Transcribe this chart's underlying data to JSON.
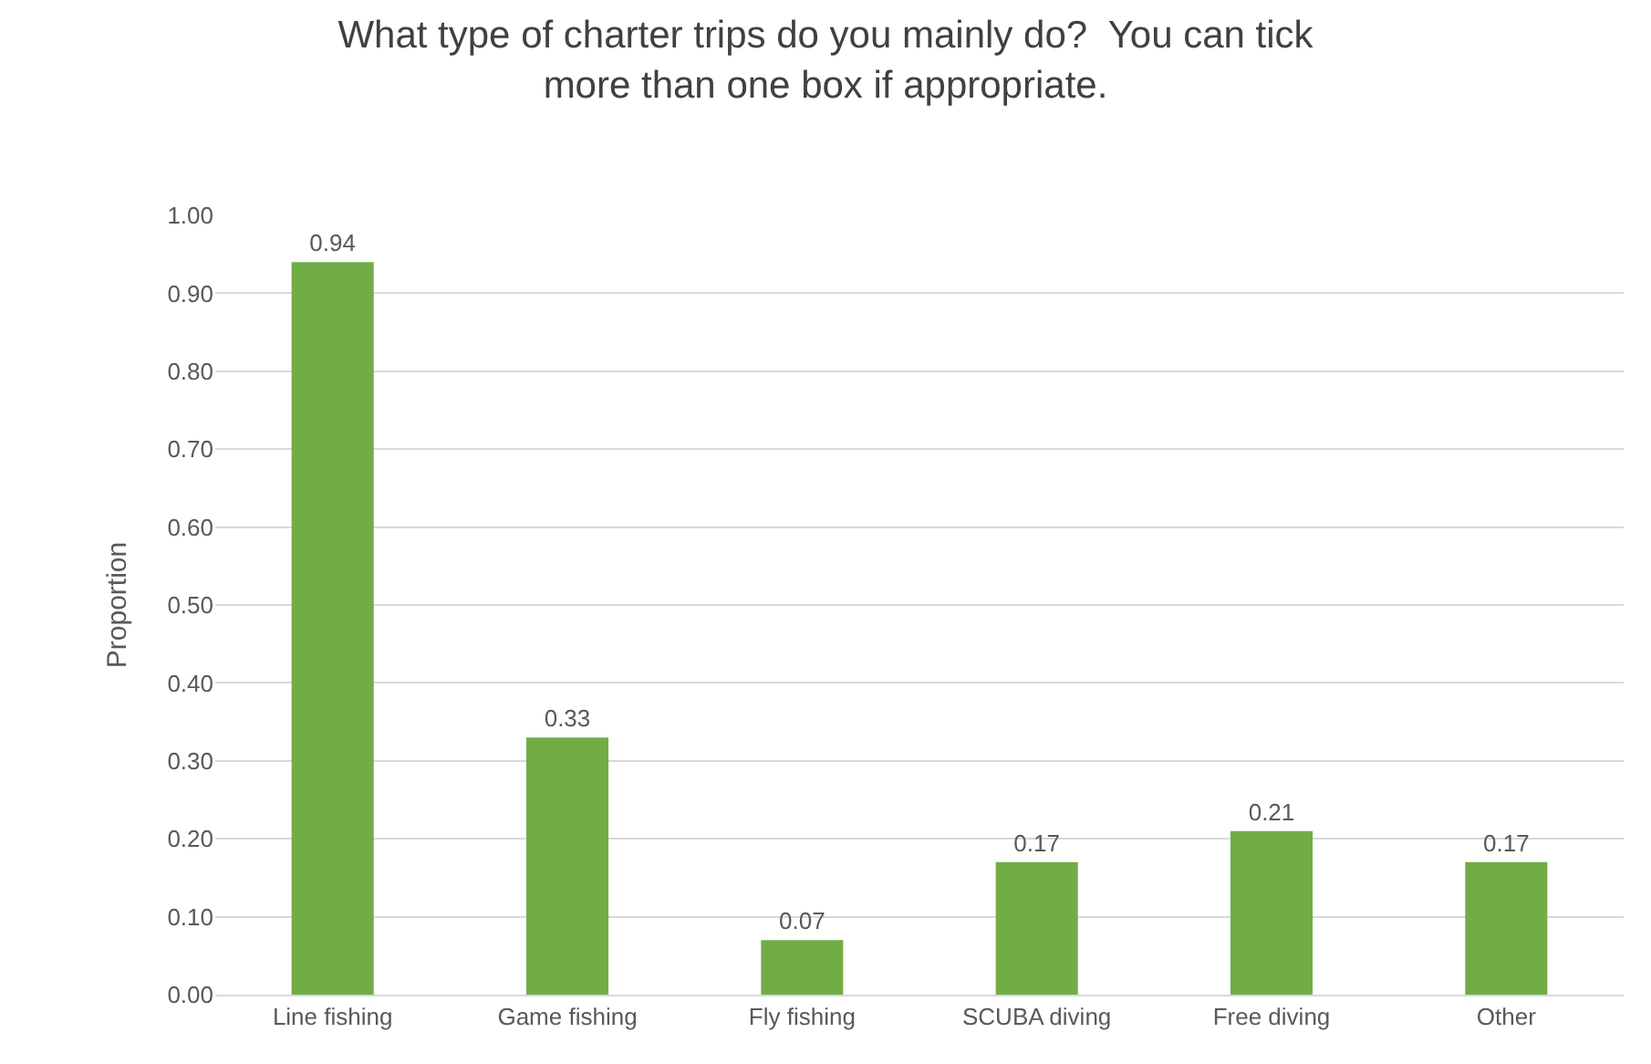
{
  "chart_data": {
    "type": "bar",
    "title": "What type of charter trips do you mainly do?  You can tick more than one box if appropriate.",
    "ylabel": "Proportion",
    "categories": [
      "Line fishing",
      "Game fishing",
      "Fly fishing",
      "SCUBA diving",
      "Free diving",
      "Other"
    ],
    "values": [
      0.94,
      0.33,
      0.07,
      0.17,
      0.21,
      0.17
    ],
    "color": "#70ad47",
    "ylim": [
      0,
      1
    ],
    "yticks": [
      {
        "value": 0,
        "label": "0.00"
      },
      {
        "value": 0.1,
        "label": "0.10"
      },
      {
        "value": 0.2,
        "label": "0.20"
      },
      {
        "value": 0.3,
        "label": "0.30"
      },
      {
        "value": 0.4,
        "label": "0.40"
      },
      {
        "value": 0.5,
        "label": "0.50"
      },
      {
        "value": 0.6,
        "label": "0.60"
      },
      {
        "value": 0.7,
        "label": "0.70"
      },
      {
        "value": 0.8,
        "label": "0.80"
      },
      {
        "value": 0.9,
        "label": "0.90"
      },
      {
        "value": 1,
        "label": "1.00"
      }
    ],
    "grid": "y",
    "data_labels": true
  }
}
